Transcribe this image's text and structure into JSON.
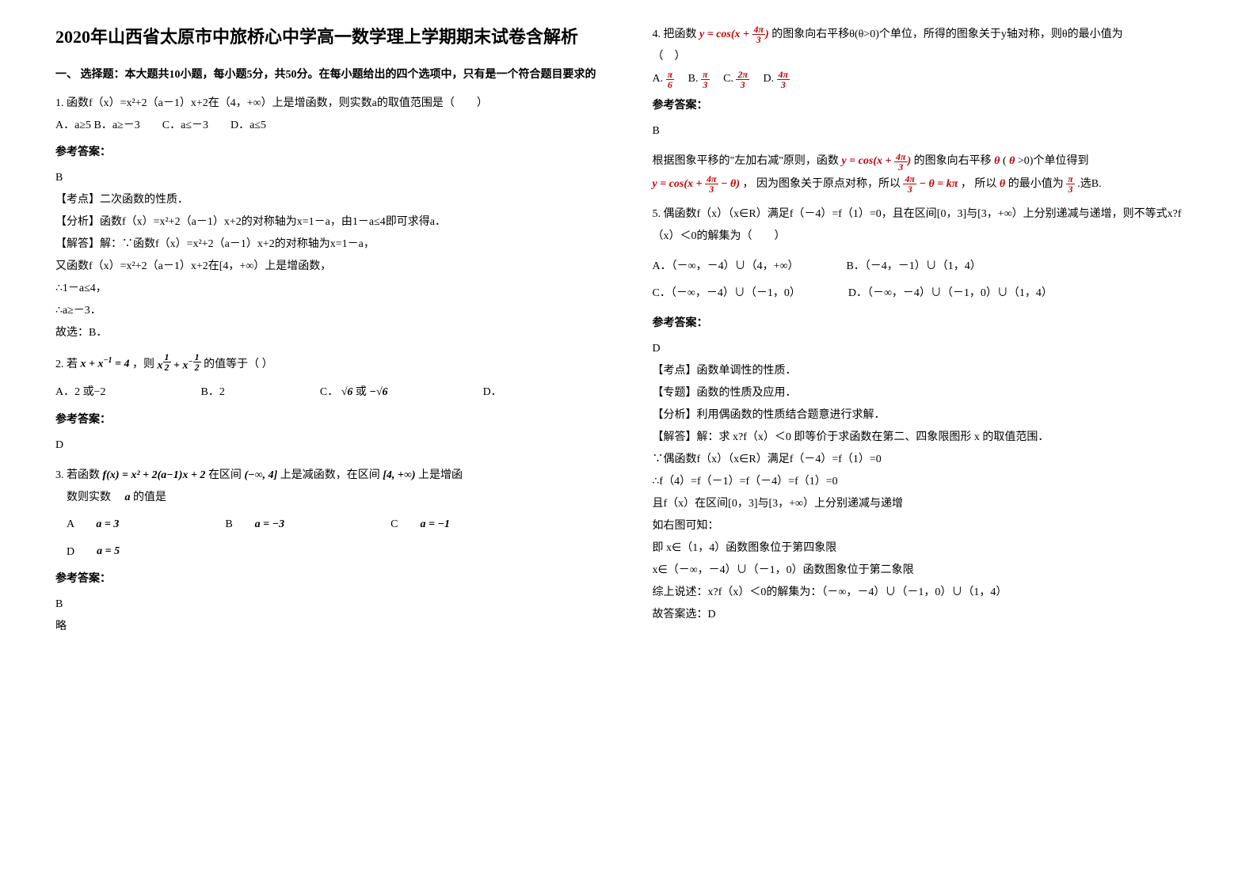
{
  "title": "2020年山西省太原市中旅桥心中学高一数学理上学期期末试卷含解析",
  "section1_header": "一、 选择题：本大题共10小题，每小题5分，共50分。在每小题给出的四个选项中，只有是一个符合题目要求的",
  "q1": {
    "stem": "1. 函数f（x）=x²+2（a－1）x+2在（4，+∞）上是增函数，则实数a的取值范围是（　　）",
    "opts": "A．a≥5 B．a≥－3　　C．a≤－3　　D．a≤5",
    "ans_label": "参考答案：",
    "ans": "B",
    "kp": "【考点】二次函数的性质．",
    "fx": "【分析】函数f（x）=x²+2（a－1）x+2的对称轴为x=1－a，由1－a≤4即可求得a．",
    "jd1": "【解答】解：∵函数f（x）=x²+2（a－1）x+2的对称轴为x=1－a，",
    "jd2": "又函数f（x）=x²+2（a－1）x+2在[4，+∞）上是增函数，",
    "jd3": "∴1－a≤4，",
    "jd4": "∴a≥－3．",
    "jd5": "故选：B．"
  },
  "q2": {
    "stem_a": "2. 若",
    "stem_b": "，则",
    "stem_c": " 的值等于（ ）",
    "optA": "A．2 或−2",
    "optB": "B．2",
    "optC_a": "C．",
    "optC_b": " 或",
    "optD": "D．",
    "ans_label": "参考答案：",
    "ans": "D"
  },
  "q3": {
    "stem_a": "3. 若函数",
    "stem_b": " 在区间",
    "stem_c": " 上是减函数，在区间",
    "stem_d": " 上是增函",
    "stem2": "数则实数",
    "stem2b": " 的值是",
    "optA": "a = 3",
    "optB": "a = −3",
    "optC": "a = −1",
    "optD": "a = 5",
    "A": "A",
    "B": "B",
    "C": "C",
    "D": "D",
    "ans_label": "参考答案：",
    "ans": "B",
    "lue": "略"
  },
  "q4": {
    "stem_a": "4. 把函数",
    "stem_b": " 的图象向右平移θ(θ>0)个单位，所得的图象关于y轴对称，则θ的最小值为",
    "stem_c": "（　）",
    "ans_label": "参考答案：",
    "ans": "B",
    "expl_a": "根据图象平移的\"左加右减\"原则，函数",
    "expl_b": " 的图象向右平移",
    "expl_c": "(",
    "expl_d": ">0)个单位得到",
    "expl2_b": "， 因为图象关于原点对称，所以 ",
    "expl2_d": "， 所以",
    "expl2_f": " 的最小值为",
    "expl2_h": ".选B."
  },
  "q5": {
    "stem1": "5. 偶函数f（x）（x∈R）满足f（－4）=f（1）=0，且在区间[0，3]与[3，+∞）上分别递减与递增，则不等式x?f（x）＜0的解集为（　　）",
    "optA": "A．（－∞，－4）∪（4，+∞）",
    "optB": "B．（－4，－1）∪（1，4）",
    "optC": "C．（－∞，－4）∪（－1，0）",
    "optD": "D．（－∞，－4）∪（－1，0）∪（1，4）",
    "ans_label": "参考答案：",
    "ans": "D",
    "kp": "【考点】函数单调性的性质．",
    "zt": "【专题】函数的性质及应用．",
    "fx": "【分析】利用偶函数的性质结合题意进行求解．",
    "jd1": "【解答】解：求 x?f（x）＜0 即等价于求函数在第二、四象限图形 x 的取值范围．",
    "jd2": "∵偶函数f（x）（x∈R）满足f（－4）=f（1）=0",
    "jd3": "∴f（4）=f（－1）=f（－4）=f（1）=0",
    "jd4": "且f（x）在区间[0，3]与[3，+∞）上分别递减与递增",
    "jd5": "如右图可知：",
    "jd6": "即 x∈（1，4）函数图象位于第四象限",
    "jd7": "x∈（－∞，－4）∪（－1，0）函数图象位于第二象限",
    "jd8": "综上说述：x?f（x）＜0的解集为：（－∞，－4）∪（－1，0）∪（1，4）",
    "jd9": "故答案选：D"
  }
}
